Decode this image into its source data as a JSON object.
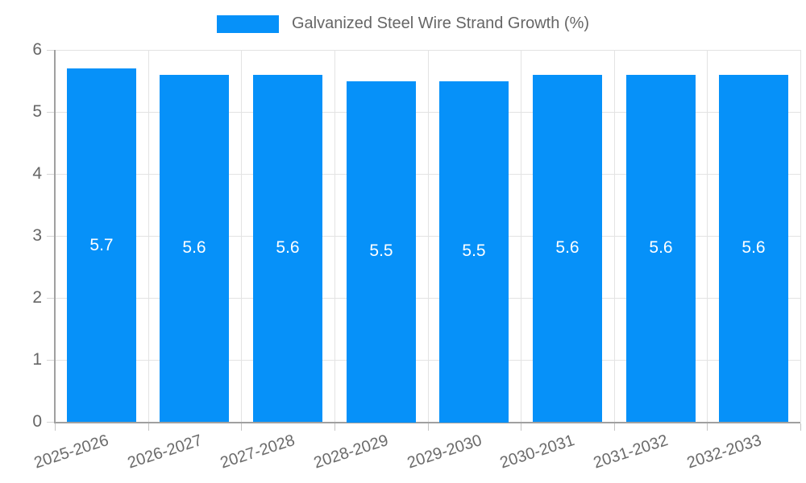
{
  "legend": {
    "label": "Galvanized Steel Wire Strand Growth (%)"
  },
  "chart_data": {
    "type": "bar",
    "title": "Galvanized Steel Wire Strand Growth (%)",
    "categories": [
      "2025-2026",
      "2026-2027",
      "2027-2028",
      "2028-2029",
      "2029-2030",
      "2030-2031",
      "2031-2032",
      "2032-2033"
    ],
    "values": [
      5.7,
      5.6,
      5.6,
      5.5,
      5.5,
      5.6,
      5.6,
      5.6
    ],
    "bar_labels": [
      "5.7",
      "5.6",
      "5.6",
      "5.5",
      "5.5",
      "5.6",
      "5.6",
      "5.6"
    ],
    "xlabel": "",
    "ylabel": "",
    "ylim": [
      0,
      6
    ],
    "yticks": [
      0,
      1,
      2,
      3,
      4,
      5,
      6
    ],
    "grid": true,
    "legend_position": "top",
    "colors": {
      "bar": "#0691f9",
      "bar_label": "#ffffff",
      "grid": "#e3e3e3",
      "axis": "#a0a0a0",
      "tick_text": "#666666",
      "legend_text": "#666666",
      "background": "#ffffff"
    }
  }
}
